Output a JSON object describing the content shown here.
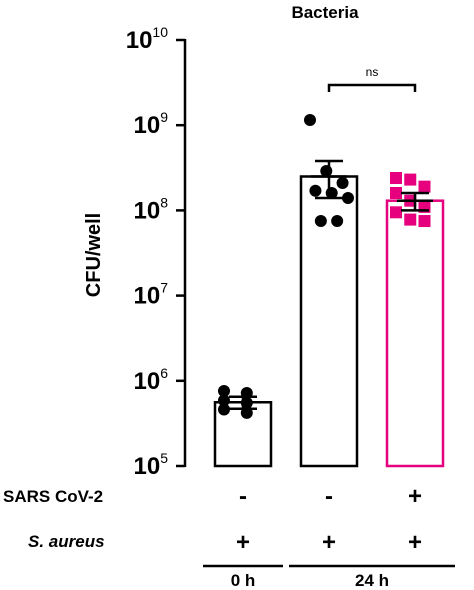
{
  "chart_data": {
    "type": "bar",
    "title": "Bacteria",
    "ylabel": "CFU/well",
    "yscale": "log",
    "ylim": [
      100000,
      10000000000
    ],
    "y_ticks": [
      {
        "value": 100000,
        "base": "10",
        "exp": "5"
      },
      {
        "value": 1000000,
        "base": "10",
        "exp": "6"
      },
      {
        "value": 10000000,
        "base": "10",
        "exp": "7"
      },
      {
        "value": 100000000,
        "base": "10",
        "exp": "8"
      },
      {
        "value": 1000000000,
        "base": "10",
        "exp": "9"
      },
      {
        "value": 10000000000,
        "base": "10",
        "exp": "10"
      }
    ],
    "bars": [
      {
        "mean": 560000,
        "err_low": 470000,
        "err_high": 650000,
        "color": "#000000",
        "marker": "circle",
        "points": [
          760000,
          720000,
          590000,
          550000,
          460000,
          420000
        ]
      },
      {
        "mean": 250000000,
        "err_low": 140000000,
        "err_high": 380000000,
        "color": "#000000",
        "marker": "circle",
        "points": [
          1150000000,
          290000000,
          210000000,
          170000000,
          160000000,
          140000000,
          75000000,
          75000000
        ]
      },
      {
        "mean": 130000000,
        "err_low": 100000000,
        "err_high": 160000000,
        "color": "#e6007e",
        "marker": "square",
        "points": [
          240000000,
          230000000,
          190000000,
          160000000,
          130000000,
          110000000,
          95000000,
          78000000,
          75000000
        ]
      }
    ],
    "significance": {
      "label": "ns",
      "from": 1,
      "to": 2
    },
    "row_labels": {
      "sars": "SARS CoV-2",
      "aureus": "S. aureus"
    },
    "sars_signs": [
      "-",
      "-",
      "+"
    ],
    "aureus_signs": [
      "+",
      "+",
      "+"
    ],
    "groups": [
      {
        "label": "0 h",
        "bars": [
          0
        ]
      },
      {
        "label": "24 h",
        "bars": [
          1,
          2
        ]
      }
    ]
  }
}
